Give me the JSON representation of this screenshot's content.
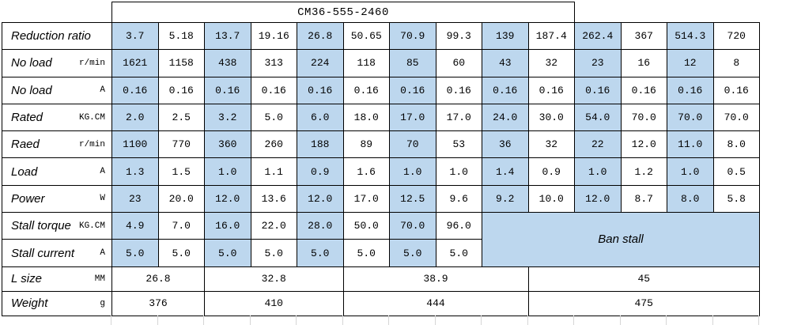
{
  "title": "CM36-555-2460",
  "colors": {
    "cell_blue": "#bdd7ee",
    "border": "#000000",
    "gridline": "#d6d6d6"
  },
  "ban_stall_label": "Ban stall",
  "rows": [
    {
      "label": "Reduction ratio",
      "unit": "",
      "values": [
        "3.7",
        "5.18",
        "13.7",
        "19.16",
        "26.8",
        "50.65",
        "70.9",
        "99.3",
        "139",
        "187.4",
        "262.4",
        "367",
        "514.3",
        "720"
      ]
    },
    {
      "label": "No load",
      "unit": "r/min",
      "values": [
        "1621",
        "1158",
        "438",
        "313",
        "224",
        "118",
        "85",
        "60",
        "43",
        "32",
        "23",
        "16",
        "12",
        "8"
      ]
    },
    {
      "label": "No load",
      "unit": "A",
      "values": [
        "0.16",
        "0.16",
        "0.16",
        "0.16",
        "0.16",
        "0.16",
        "0.16",
        "0.16",
        "0.16",
        "0.16",
        "0.16",
        "0.16",
        "0.16",
        "0.16"
      ]
    },
    {
      "label": "Rated",
      "unit": "KG.CM",
      "values": [
        "2.0",
        "2.5",
        "3.2",
        "5.0",
        "6.0",
        "18.0",
        "17.0",
        "17.0",
        "24.0",
        "30.0",
        "54.0",
        "70.0",
        "70.0",
        "70.0"
      ]
    },
    {
      "label": "Raed",
      "unit": "r/min",
      "values": [
        "1100",
        "770",
        "360",
        "260",
        "188",
        "89",
        "70",
        "53",
        "36",
        "32",
        "22",
        "12.0",
        "11.0",
        "8.0"
      ]
    },
    {
      "label": "Load",
      "unit": "A",
      "values": [
        "1.3",
        "1.5",
        "1.0",
        "1.1",
        "0.9",
        "1.6",
        "1.0",
        "1.0",
        "1.4",
        "0.9",
        "1.0",
        "1.2",
        "1.0",
        "0.5"
      ]
    },
    {
      "label": "Power",
      "unit": "W",
      "values": [
        "23",
        "20.0",
        "12.0",
        "13.6",
        "12.0",
        "17.0",
        "12.5",
        "9.6",
        "9.2",
        "10.0",
        "12.0",
        "8.7",
        "8.0",
        "5.8"
      ]
    },
    {
      "label": "Stall torque",
      "unit": "KG.CM",
      "values": [
        "4.9",
        "7.0",
        "16.0",
        "22.0",
        "28.0",
        "50.0",
        "70.0",
        "96.0"
      ]
    },
    {
      "label": "Stall current",
      "unit": "A",
      "values": [
        "5.0",
        "5.0",
        "5.0",
        "5.0",
        "5.0",
        "5.0",
        "5.0",
        "5.0"
      ]
    }
  ],
  "size_rows": [
    {
      "label": "L size",
      "unit": "MM",
      "values": [
        "26.8",
        "32.8",
        "38.9",
        "45"
      ]
    },
    {
      "label": "Weight",
      "unit": "g",
      "values": [
        "376",
        "410",
        "444",
        "475"
      ]
    }
  ]
}
